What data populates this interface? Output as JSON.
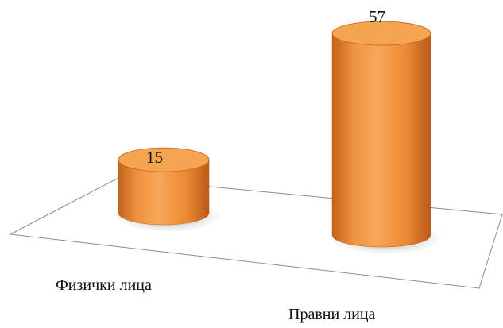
{
  "chart_data": {
    "type": "bar",
    "style": "3d-cylinder",
    "categories": [
      "Физички лица",
      "Правни лица"
    ],
    "values": [
      15,
      57
    ],
    "ylim": [
      0,
      57
    ],
    "grid": false,
    "legend": "none",
    "bar_color": "#f0913a",
    "bar_top_color": "#f5a452",
    "bar_edge_color": "#c5651a",
    "floor_line_color": "#8c8c8c"
  }
}
